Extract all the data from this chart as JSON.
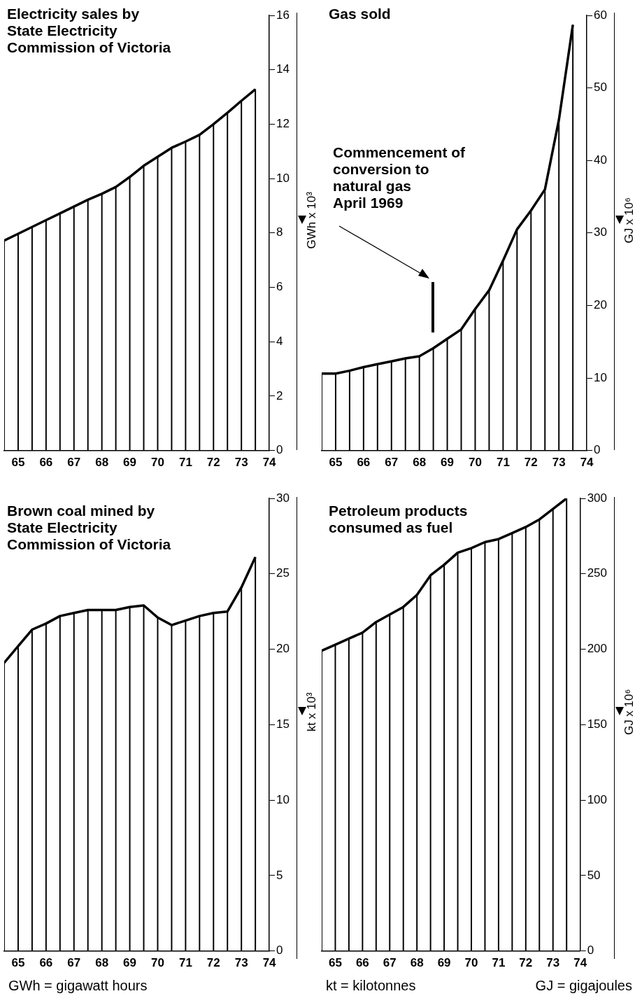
{
  "chart_data": [
    {
      "type": "bar",
      "title": "Electricity sales by\nState Electricity\nCommission of Victoria",
      "ylabel": "GWh x 10³",
      "x": [
        64.5,
        65,
        65.5,
        66,
        66.5,
        67,
        67.5,
        68,
        68.5,
        69,
        69.5,
        70,
        70.5,
        71,
        71.5,
        72,
        72.5,
        73,
        73.5
      ],
      "series": [
        {
          "color": "#000000",
          "values": [
            7.72,
            7.97,
            8.22,
            8.47,
            8.72,
            8.97,
            9.22,
            9.44,
            9.69,
            10.06,
            10.47,
            10.8,
            11.13,
            11.36,
            11.61,
            12.0,
            12.42,
            12.86,
            13.28
          ]
        },
        {
          "type": "line",
          "color": "#000000",
          "values": [
            7.72,
            7.97,
            8.22,
            8.47,
            8.72,
            8.97,
            9.22,
            9.44,
            9.69,
            10.06,
            10.47,
            10.8,
            11.13,
            11.36,
            11.61,
            12.0,
            12.42,
            12.86,
            13.28
          ]
        }
      ],
      "xlim": [
        64.5,
        74
      ],
      "xticks": [
        65,
        66,
        67,
        68,
        69,
        70,
        71,
        72,
        73,
        74
      ],
      "ylim": [
        0,
        16
      ],
      "yticks": [
        0,
        2,
        4,
        6,
        8,
        10,
        12,
        14,
        16
      ]
    },
    {
      "type": "bar",
      "title": "Gas sold",
      "ylabel": "GJ x 10⁶",
      "x": [
        64.5,
        65,
        65.5,
        66,
        66.5,
        67,
        67.5,
        68,
        68.5,
        69,
        69.5,
        70,
        70.5,
        71,
        71.5,
        72,
        72.5,
        73,
        73.5
      ],
      "series": [
        {
          "color": "#000000",
          "values": [
            10.6,
            10.6,
            11.0,
            11.5,
            11.9,
            12.3,
            12.7,
            13.0,
            14.1,
            15.4,
            16.7,
            19.5,
            22.1,
            26.2,
            30.5,
            33.1,
            36.0,
            45.6,
            58.7
          ]
        },
        {
          "type": "line",
          "color": "#000000",
          "values": [
            10.6,
            10.6,
            11.0,
            11.5,
            11.9,
            12.3,
            12.7,
            13.0,
            14.1,
            15.4,
            16.7,
            19.5,
            22.1,
            26.2,
            30.5,
            33.1,
            36.0,
            45.6,
            58.7
          ]
        }
      ],
      "xlim": [
        64.5,
        74
      ],
      "xticks": [
        65,
        66,
        67,
        68,
        69,
        70,
        71,
        72,
        73,
        74
      ],
      "ylim": [
        0,
        60
      ],
      "yticks": [
        0,
        10,
        20,
        30,
        40,
        50,
        60
      ],
      "annotations": [
        "Commencement of\nconversion to\nnatural gas\nApril 1969"
      ]
    },
    {
      "type": "bar",
      "title": "Brown coal mined by\nState Electricity\nCommission of Victoria",
      "ylabel": "kt x 10³",
      "x": [
        64.5,
        65,
        65.5,
        66,
        66.5,
        67,
        67.5,
        68,
        68.5,
        69,
        69.5,
        70,
        70.5,
        71,
        71.5,
        72,
        72.5,
        73,
        73.5
      ],
      "series": [
        {
          "color": "#000000",
          "values": [
            19.1,
            20.2,
            21.3,
            21.7,
            22.2,
            22.4,
            22.6,
            22.6,
            22.6,
            22.8,
            22.9,
            22.1,
            21.6,
            21.9,
            22.2,
            22.4,
            22.5,
            24.1,
            26.1
          ]
        },
        {
          "type": "line",
          "color": "#000000",
          "values": [
            19.1,
            20.2,
            21.3,
            21.7,
            22.2,
            22.4,
            22.6,
            22.6,
            22.6,
            22.8,
            22.9,
            22.1,
            21.6,
            21.9,
            22.2,
            22.4,
            22.5,
            24.1,
            26.1
          ]
        }
      ],
      "xlim": [
        64.5,
        74
      ],
      "xticks": [
        65,
        66,
        67,
        68,
        69,
        70,
        71,
        72,
        73,
        74
      ],
      "ylim": [
        0,
        30
      ],
      "yticks": [
        0,
        5,
        10,
        15,
        20,
        25,
        30
      ],
      "annotations": [
        "GWh = gigawatt hours"
      ]
    },
    {
      "type": "bar",
      "title": "Petroleum products\nconsumed as fuel",
      "ylabel": "GJ x 10⁶",
      "x": [
        64.5,
        65,
        65.5,
        66,
        66.5,
        67,
        67.5,
        68,
        68.5,
        69,
        69.5,
        70,
        70.5,
        71,
        71.5,
        72,
        72.5,
        73,
        73.5
      ],
      "series": [
        {
          "color": "#000000",
          "values": [
            199,
            203,
            207,
            211,
            218,
            223,
            228,
            236,
            249,
            256,
            264,
            267,
            271,
            273,
            277,
            281,
            286,
            293,
            300
          ]
        },
        {
          "type": "line",
          "color": "#000000",
          "values": [
            199,
            203,
            207,
            211,
            218,
            223,
            228,
            236,
            249,
            256,
            264,
            267,
            271,
            273,
            277,
            281,
            286,
            293,
            300
          ]
        }
      ],
      "xlim": [
        64.5,
        74
      ],
      "xticks": [
        65,
        66,
        67,
        68,
        69,
        70,
        71,
        72,
        73,
        74
      ],
      "ylim": [
        0,
        300
      ],
      "yticks": [
        0,
        50,
        100,
        150,
        200,
        250,
        300
      ],
      "annotations": [
        "kt = kilotonnes",
        "GJ = gigajoules"
      ]
    }
  ]
}
